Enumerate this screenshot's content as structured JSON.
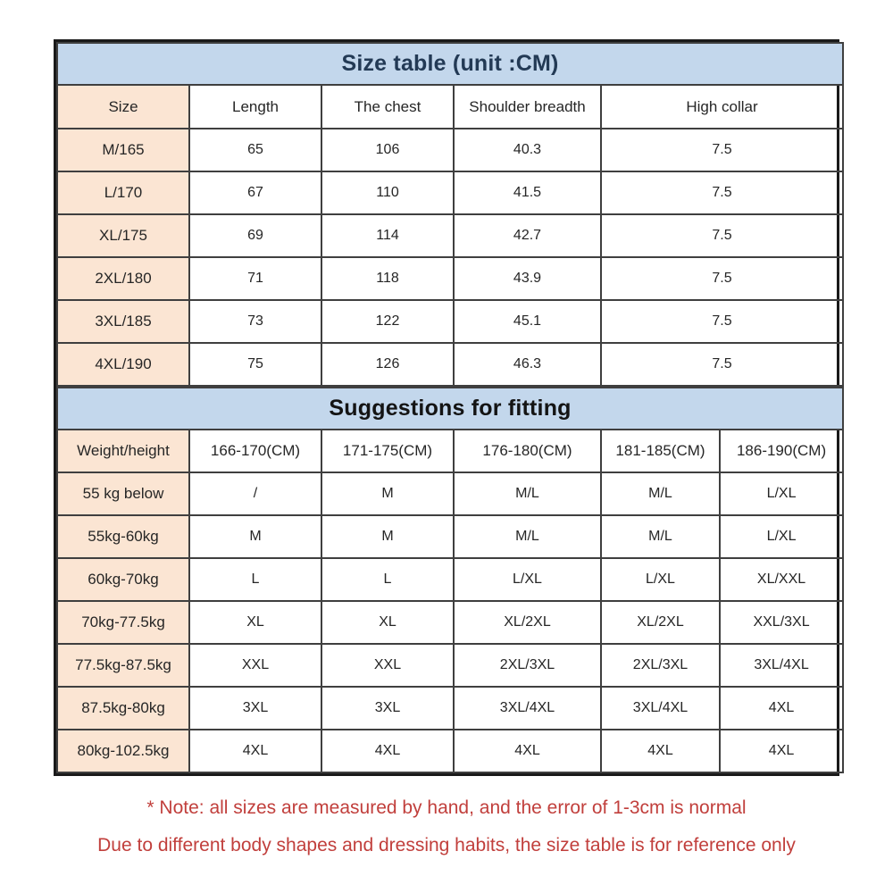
{
  "colors": {
    "banner_blue": "#c3d7ec",
    "label_peach": "#fbe5d3",
    "title_navy": "#233a55",
    "subtitle_black": "#141414",
    "note_red": "#c13f3c",
    "grid_line": "#3f3f3f",
    "outer_border": "#1a1a1a",
    "cell_text": "#262626",
    "background": "#ffffff"
  },
  "size_table": {
    "title": "Size table (unit :CM)",
    "columns": [
      "Size",
      "Length",
      "The chest",
      "Shoulder breadth",
      "High collar"
    ],
    "rows": [
      [
        "M/165",
        "65",
        "106",
        "40.3",
        "7.5"
      ],
      [
        "L/170",
        "67",
        "110",
        "41.5",
        "7.5"
      ],
      [
        "XL/175",
        "69",
        "114",
        "42.7",
        "7.5"
      ],
      [
        "2XL/180",
        "71",
        "118",
        "43.9",
        "7.5"
      ],
      [
        "3XL/185",
        "73",
        "122",
        "45.1",
        "7.5"
      ],
      [
        "4XL/190",
        "75",
        "126",
        "46.3",
        "7.5"
      ]
    ]
  },
  "fitting_table": {
    "title": "Suggestions for fitting",
    "columns": [
      "Weight/height",
      "166-170(CM)",
      "171-175(CM)",
      "176-180(CM)",
      "181-185(CM)",
      "186-190(CM)"
    ],
    "rows": [
      [
        "55 kg below",
        "/",
        "M",
        "M/L",
        "M/L",
        "L/XL"
      ],
      [
        "55kg-60kg",
        "M",
        "M",
        "M/L",
        "M/L",
        "L/XL"
      ],
      [
        "60kg-70kg",
        "L",
        "L",
        "L/XL",
        "L/XL",
        "XL/XXL"
      ],
      [
        "70kg-77.5kg",
        "XL",
        "XL",
        "XL/2XL",
        "XL/2XL",
        "XXL/3XL"
      ],
      [
        "77.5kg-87.5kg",
        "XXL",
        "XXL",
        "2XL/3XL",
        "2XL/3XL",
        "3XL/4XL"
      ],
      [
        "87.5kg-80kg",
        "3XL",
        "3XL",
        "3XL/4XL",
        "3XL/4XL",
        "4XL"
      ],
      [
        "80kg-102.5kg",
        "4XL",
        "4XL",
        "4XL",
        "4XL",
        "4XL"
      ]
    ]
  },
  "notes": {
    "line1": "* Note: all sizes are measured by hand, and the error of 1-3cm is normal",
    "line2": "Due to different body shapes and dressing habits, the size table is for reference only"
  },
  "chart_data": [
    {
      "type": "table",
      "title": "Size table (unit :CM)",
      "columns": [
        "Size",
        "Length",
        "The chest",
        "Shoulder breadth",
        "High collar"
      ],
      "rows": [
        [
          "M/165",
          65,
          106,
          40.3,
          7.5
        ],
        [
          "L/170",
          67,
          110,
          41.5,
          7.5
        ],
        [
          "XL/175",
          69,
          114,
          42.7,
          7.5
        ],
        [
          "2XL/180",
          71,
          118,
          43.9,
          7.5
        ],
        [
          "3XL/185",
          73,
          122,
          45.1,
          7.5
        ],
        [
          "4XL/190",
          75,
          126,
          46.3,
          7.5
        ]
      ]
    },
    {
      "type": "table",
      "title": "Suggestions for fitting",
      "columns": [
        "Weight/height",
        "166-170(CM)",
        "171-175(CM)",
        "176-180(CM)",
        "181-185(CM)",
        "186-190(CM)"
      ],
      "rows": [
        [
          "55 kg below",
          "/",
          "M",
          "M/L",
          "M/L",
          "L/XL"
        ],
        [
          "55kg-60kg",
          "M",
          "M",
          "M/L",
          "M/L",
          "L/XL"
        ],
        [
          "60kg-70kg",
          "L",
          "L",
          "L/XL",
          "L/XL",
          "XL/XXL"
        ],
        [
          "70kg-77.5kg",
          "XL",
          "XL",
          "XL/2XL",
          "XL/2XL",
          "XXL/3XL"
        ],
        [
          "77.5kg-87.5kg",
          "XXL",
          "XXL",
          "2XL/3XL",
          "2XL/3XL",
          "3XL/4XL"
        ],
        [
          "87.5kg-80kg",
          "3XL",
          "3XL",
          "3XL/4XL",
          "3XL/4XL",
          "4XL"
        ],
        [
          "80kg-102.5kg",
          "4XL",
          "4XL",
          "4XL",
          "4XL",
          "4XL"
        ]
      ]
    }
  ]
}
